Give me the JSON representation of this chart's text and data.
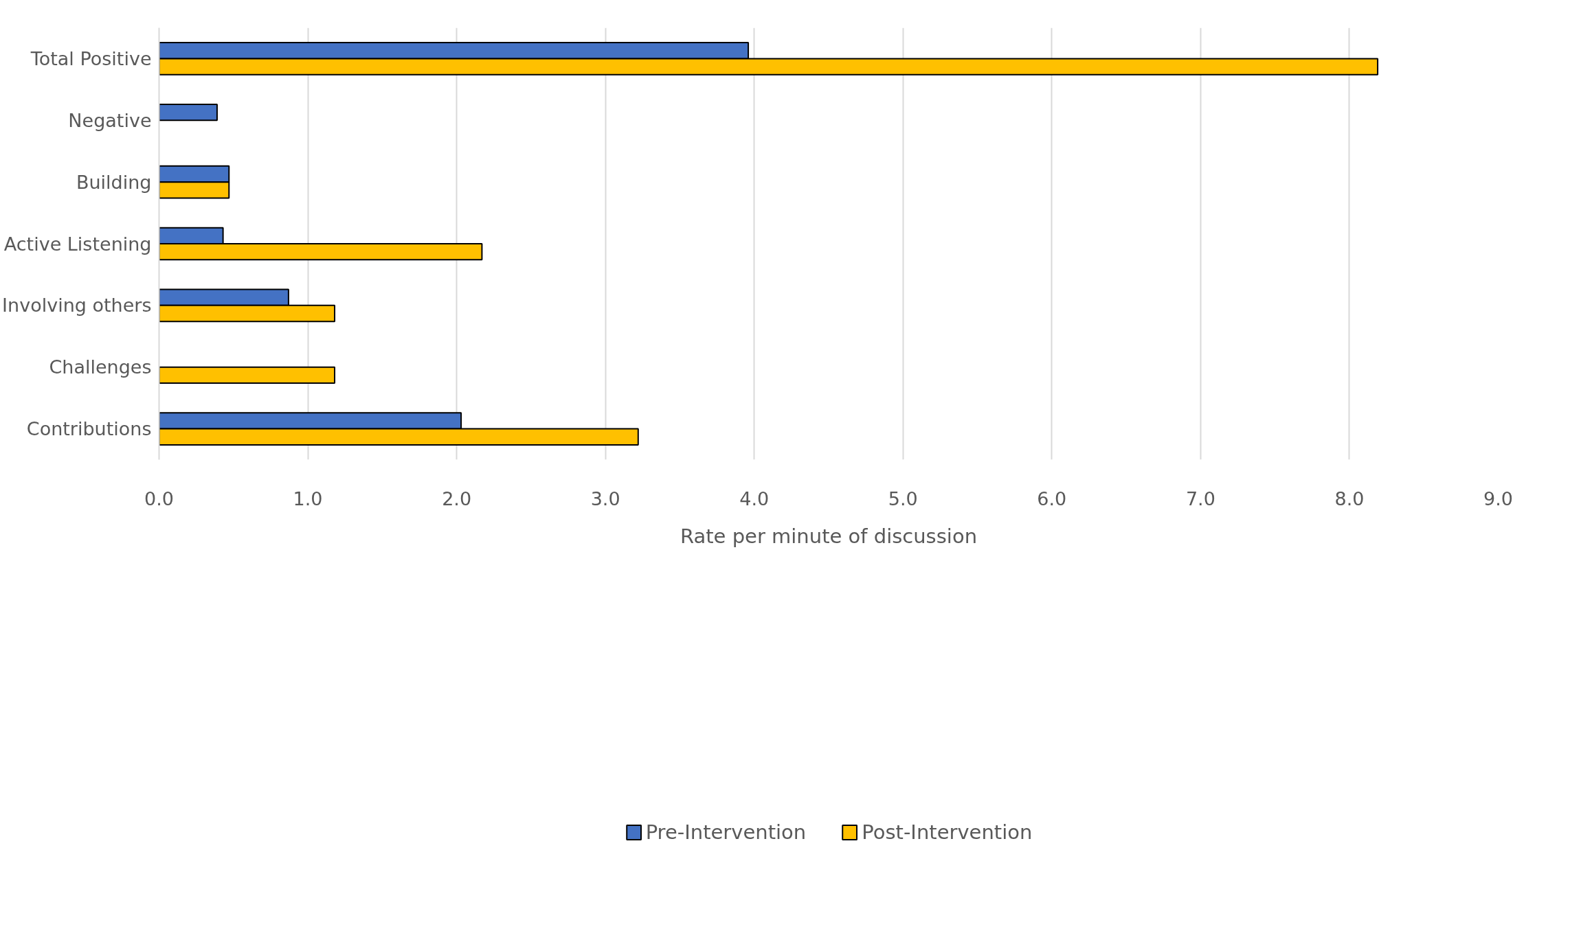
{
  "chart_data": {
    "type": "bar",
    "orientation": "horizontal",
    "xlabel": "Rate per minute of discussion",
    "categories": [
      "Total Positive",
      "Negative",
      "Building",
      "Active Listening",
      "Involving others",
      "Challenges",
      "Contributions"
    ],
    "series": [
      {
        "name": "Pre-Intervention",
        "color": "#4472c4",
        "values": [
          3.96,
          0.39,
          0.47,
          0.43,
          0.87,
          null,
          2.03
        ]
      },
      {
        "name": "Post-Intervention",
        "color": "#ffc000",
        "values": [
          8.19,
          null,
          0.47,
          2.17,
          1.18,
          1.18,
          3.22
        ]
      }
    ],
    "xlim": [
      0,
      9
    ],
    "xticks": [
      {
        "value": 0,
        "label": "0.0"
      },
      {
        "value": 1,
        "label": "1.0"
      },
      {
        "value": 2,
        "label": "2.0"
      },
      {
        "value": 3,
        "label": "3.0"
      },
      {
        "value": 4,
        "label": "4.0"
      },
      {
        "value": 5,
        "label": "5.0"
      },
      {
        "value": 6,
        "label": "6.0"
      },
      {
        "value": 7,
        "label": "7.0"
      },
      {
        "value": 8,
        "label": "8.0"
      },
      {
        "value": 9,
        "label": "9.0"
      }
    ],
    "grid": "x",
    "legend": "bottom"
  }
}
